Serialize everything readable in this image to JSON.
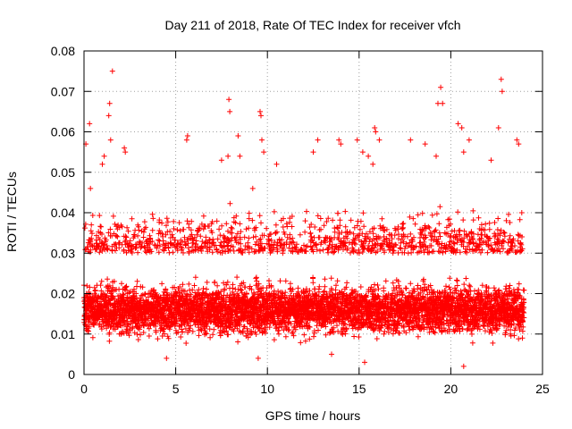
{
  "chart_data": {
    "type": "scatter",
    "title": "Day 211 of 2018, Rate Of TEC Index for receiver vfch",
    "xlabel": "GPS time / hours",
    "ylabel": "ROTI / TECUs",
    "xlim": [
      0,
      25
    ],
    "ylim": [
      0,
      0.08
    ],
    "x_ticks": [
      0,
      5,
      10,
      15,
      20,
      25
    ],
    "y_ticks": [
      0,
      0.01,
      0.02,
      0.03,
      0.04,
      0.05,
      0.06,
      0.07,
      0.08
    ],
    "x_tick_labels": [
      "0",
      "5",
      "10",
      "15",
      "20",
      "25"
    ],
    "y_tick_labels": [
      "0",
      "0.01",
      "0.02",
      "0.03",
      "0.04",
      "0.05",
      "0.06",
      "0.07",
      "0.08"
    ],
    "grid": true,
    "marker": "+",
    "color": "#ff0000",
    "series": [
      {
        "name": "ROTI",
        "data_extent_hours": [
          0,
          24
        ],
        "typical_range": [
          0.007,
          0.03
        ],
        "dense_core": [
          0.01,
          0.022
        ],
        "points": [
          [
            0.1,
            0.057
          ],
          [
            0.3,
            0.062
          ],
          [
            0.35,
            0.046
          ],
          [
            1.0,
            0.052
          ],
          [
            1.1,
            0.054
          ],
          [
            1.35,
            0.064
          ],
          [
            1.4,
            0.067
          ],
          [
            1.45,
            0.058
          ],
          [
            1.55,
            0.075
          ],
          [
            2.2,
            0.056
          ],
          [
            2.25,
            0.055
          ],
          [
            5.6,
            0.058
          ],
          [
            5.65,
            0.059
          ],
          [
            7.5,
            0.053
          ],
          [
            7.85,
            0.054
          ],
          [
            7.9,
            0.068
          ],
          [
            7.95,
            0.065
          ],
          [
            8.4,
            0.059
          ],
          [
            8.5,
            0.054
          ],
          [
            9.2,
            0.046
          ],
          [
            9.6,
            0.065
          ],
          [
            9.65,
            0.064
          ],
          [
            9.7,
            0.058
          ],
          [
            9.8,
            0.055
          ],
          [
            10.5,
            0.052
          ],
          [
            12.5,
            0.055
          ],
          [
            12.75,
            0.058
          ],
          [
            13.9,
            0.058
          ],
          [
            14.0,
            0.057
          ],
          [
            14.9,
            0.058
          ],
          [
            15.2,
            0.055
          ],
          [
            15.5,
            0.054
          ],
          [
            15.75,
            0.052
          ],
          [
            15.85,
            0.061
          ],
          [
            15.9,
            0.06
          ],
          [
            16.1,
            0.058
          ],
          [
            17.8,
            0.058
          ],
          [
            18.6,
            0.057
          ],
          [
            19.2,
            0.054
          ],
          [
            19.3,
            0.067
          ],
          [
            19.45,
            0.071
          ],
          [
            19.55,
            0.067
          ],
          [
            20.4,
            0.062
          ],
          [
            20.6,
            0.061
          ],
          [
            20.7,
            0.055
          ],
          [
            21.0,
            0.058
          ],
          [
            22.2,
            0.053
          ],
          [
            22.6,
            0.061
          ],
          [
            22.75,
            0.073
          ],
          [
            22.8,
            0.07
          ],
          [
            23.6,
            0.058
          ],
          [
            23.7,
            0.057
          ],
          [
            20.7,
            0.002
          ],
          [
            15.3,
            0.003
          ],
          [
            9.5,
            0.004
          ],
          [
            4.5,
            0.004
          ],
          [
            13.5,
            0.005
          ]
        ]
      }
    ]
  }
}
